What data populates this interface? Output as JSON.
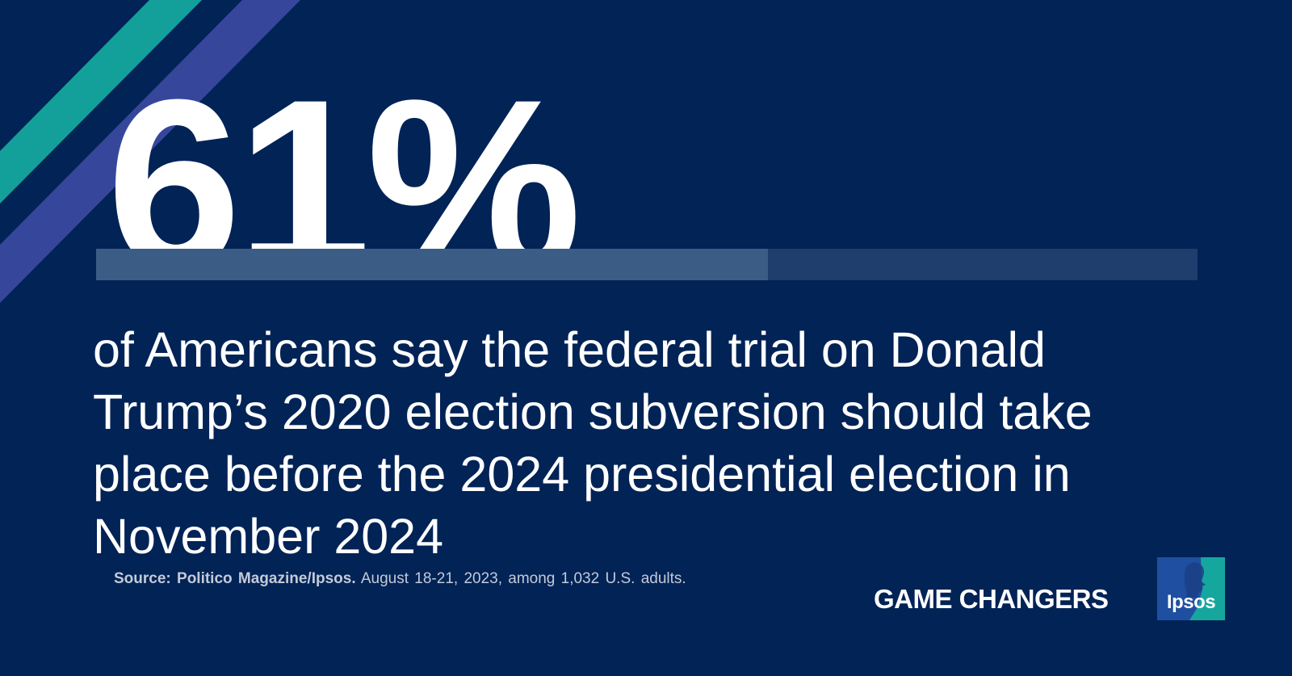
{
  "stat": {
    "value": "61%",
    "fraction": 0.61
  },
  "headline": "of Americans say the federal trial on Donald Trump’s 2020 election subversion should take place before the 2024 presidential election in November 2024",
  "source": {
    "label": "Source: Politico Magazine/Ipsos.",
    "detail": " August 18-21, 2023, among 1,032 U.S. adults."
  },
  "tagline": "GAME CHANGERS",
  "logo": {
    "text": "Ipsos",
    "icon": "ipsos-logo-icon"
  },
  "colors": {
    "background": "#022356",
    "stripe_teal": "#14a09a",
    "stripe_blue": "#36479b",
    "bar_track": "#1f3d6d",
    "bar_fill": "#3b5c85",
    "logo_blue": "#1f4fa0",
    "logo_teal": "#15a79e"
  }
}
